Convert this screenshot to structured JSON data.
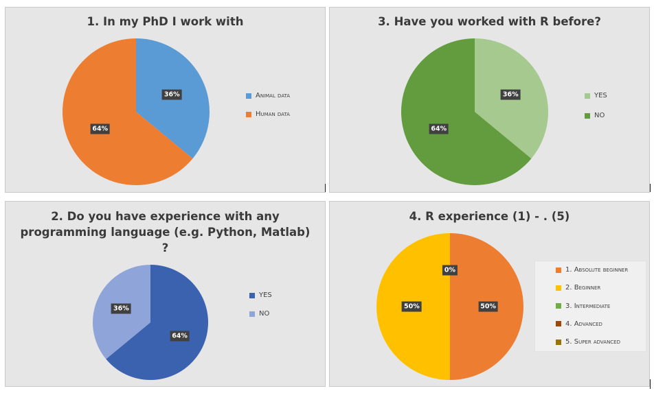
{
  "chart_data": [
    {
      "type": "pie",
      "title": "1. In my PhD I work with",
      "categories": [
        "Animal data",
        "Human data"
      ],
      "values": [
        36,
        64
      ],
      "data_labels": [
        "36%",
        "64%"
      ],
      "colors": [
        "#5b9bd5",
        "#ed7d31"
      ],
      "legend_position": "right"
    },
    {
      "type": "pie",
      "title": "2. Do you have experience with any programming language (e.g. Python, Matlab) ?",
      "categories": [
        "YES",
        "NO"
      ],
      "values": [
        64,
        36
      ],
      "data_labels": [
        "64%",
        "36%"
      ],
      "colors": [
        "#3a62ae",
        "#8fa4d8"
      ],
      "legend_position": "right"
    },
    {
      "type": "pie",
      "title": "3. Have you worked with R before?",
      "categories": [
        "YES",
        "NO"
      ],
      "values": [
        36,
        64
      ],
      "data_labels": [
        "36%",
        "64%"
      ],
      "colors": [
        "#a5c98f",
        "#629c3e"
      ],
      "legend_position": "right"
    },
    {
      "type": "pie",
      "title": "4. R experience (1) - . (5)",
      "categories": [
        "1. Absolute beginner",
        "2. Beginner",
        "3. Intermediate",
        "4. Advanced",
        "5. Super advanced"
      ],
      "values": [
        50,
        50,
        0,
        0,
        0
      ],
      "data_labels": [
        "50%",
        "50%",
        "0%",
        "",
        ""
      ],
      "colors": [
        "#ed7d31",
        "#ffc000",
        "#70ad47",
        "#9e480e",
        "#997300"
      ],
      "legend_position": "right"
    }
  ]
}
